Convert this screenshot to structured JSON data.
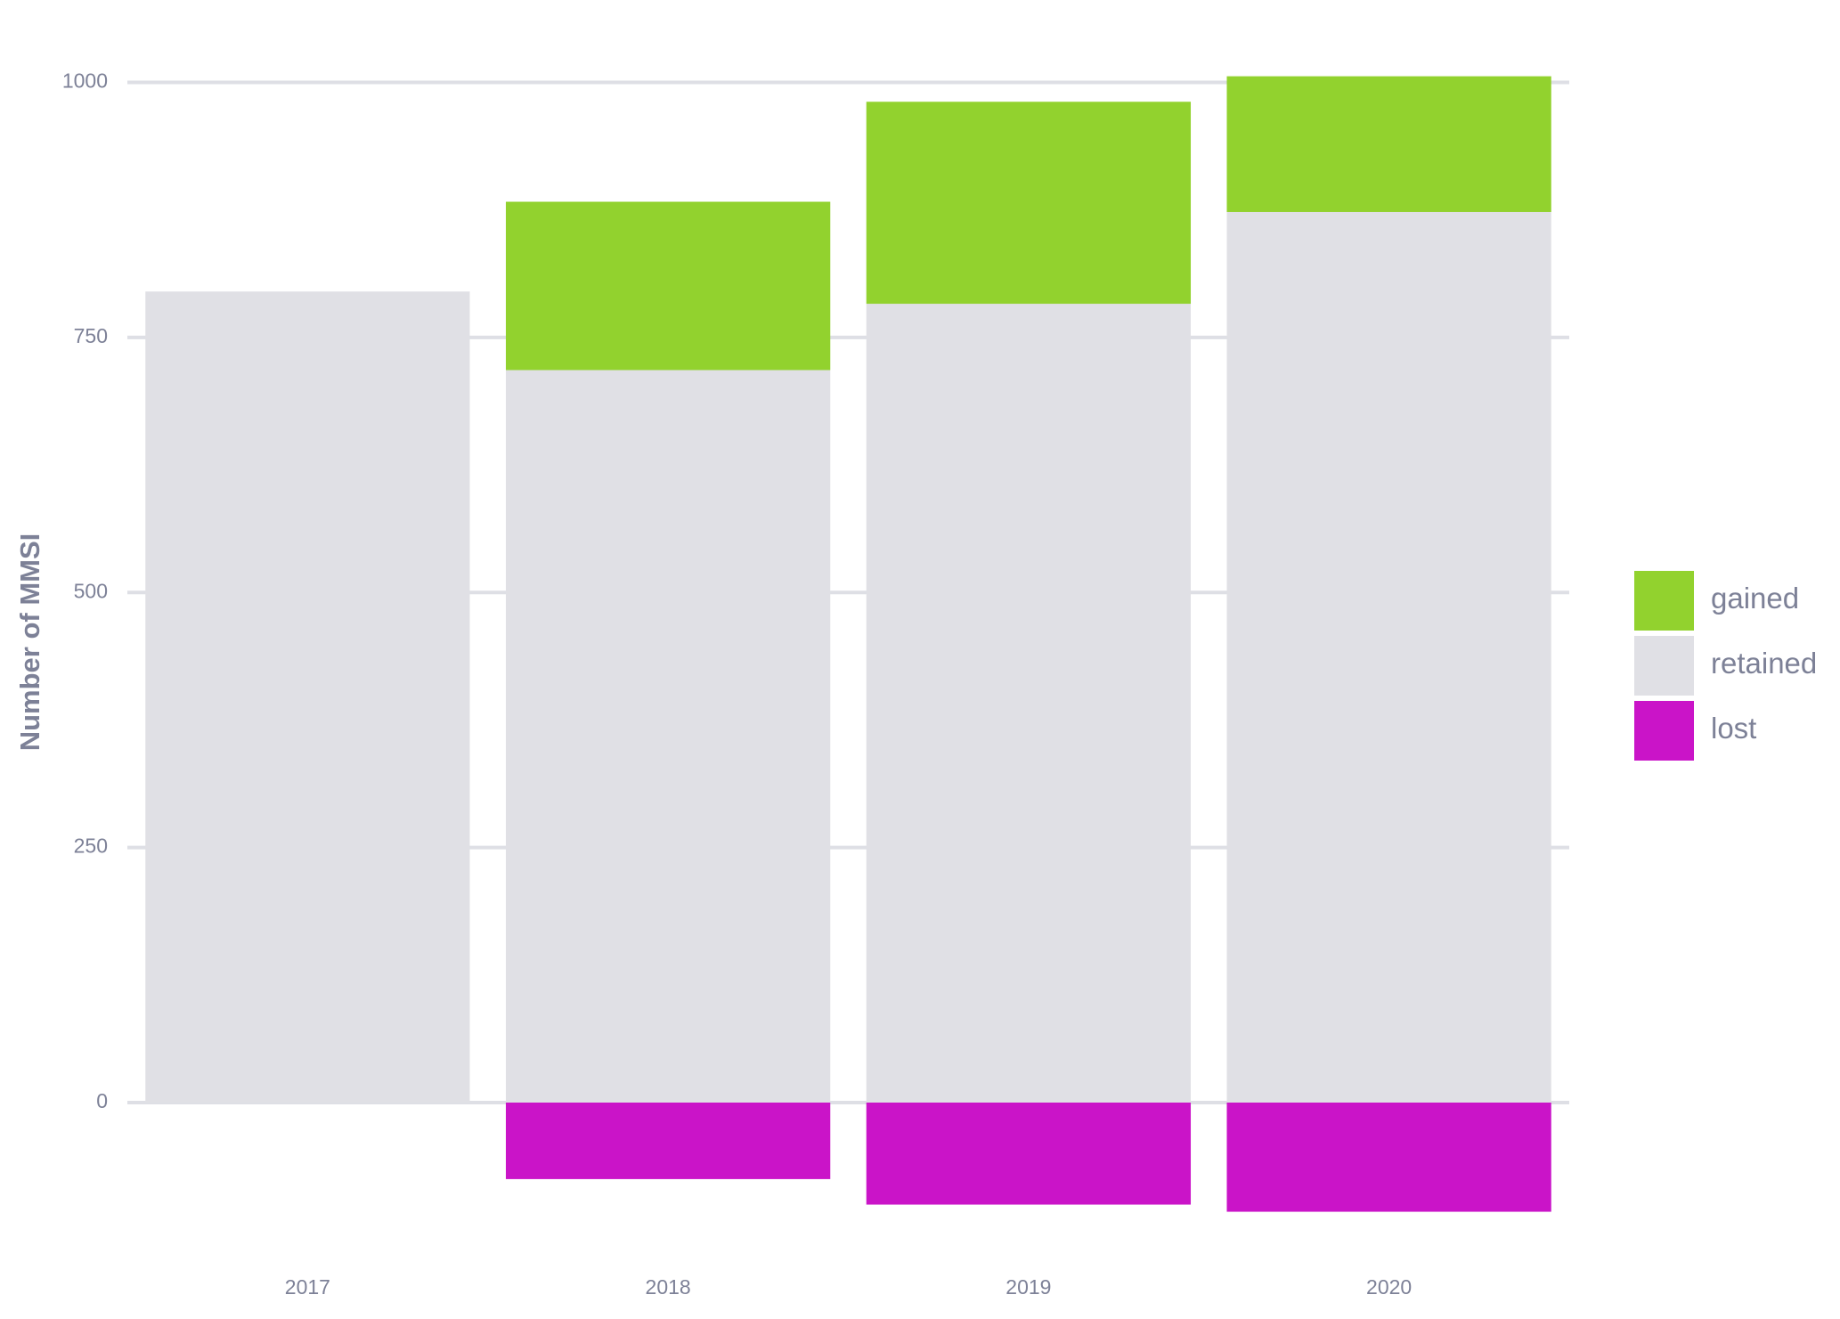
{
  "chart_data": {
    "type": "bar",
    "stacked": true,
    "categories": [
      "2017",
      "2018",
      "2019",
      "2020"
    ],
    "series": [
      {
        "name": "retained",
        "color": "#e0e0e5",
        "values": [
          795,
          718,
          783,
          873
        ]
      },
      {
        "name": "gained",
        "color": "#92d22e",
        "values": [
          0,
          165,
          198,
          133
        ]
      },
      {
        "name": "lost",
        "color": "#ca14c8",
        "values": [
          0,
          -75,
          -100,
          -107
        ]
      }
    ],
    "legend_order": [
      "gained",
      "retained",
      "lost"
    ],
    "legend_position": "right",
    "title": "",
    "xlabel": "",
    "ylabel": "Number of MMSI",
    "ylim": [
      -125,
      1025
    ],
    "yticks": [
      0,
      250,
      500,
      750,
      1000
    ],
    "ytick_labels": [
      "0",
      "250",
      "500",
      "750",
      "1000"
    ],
    "grid": "horizontal major"
  }
}
